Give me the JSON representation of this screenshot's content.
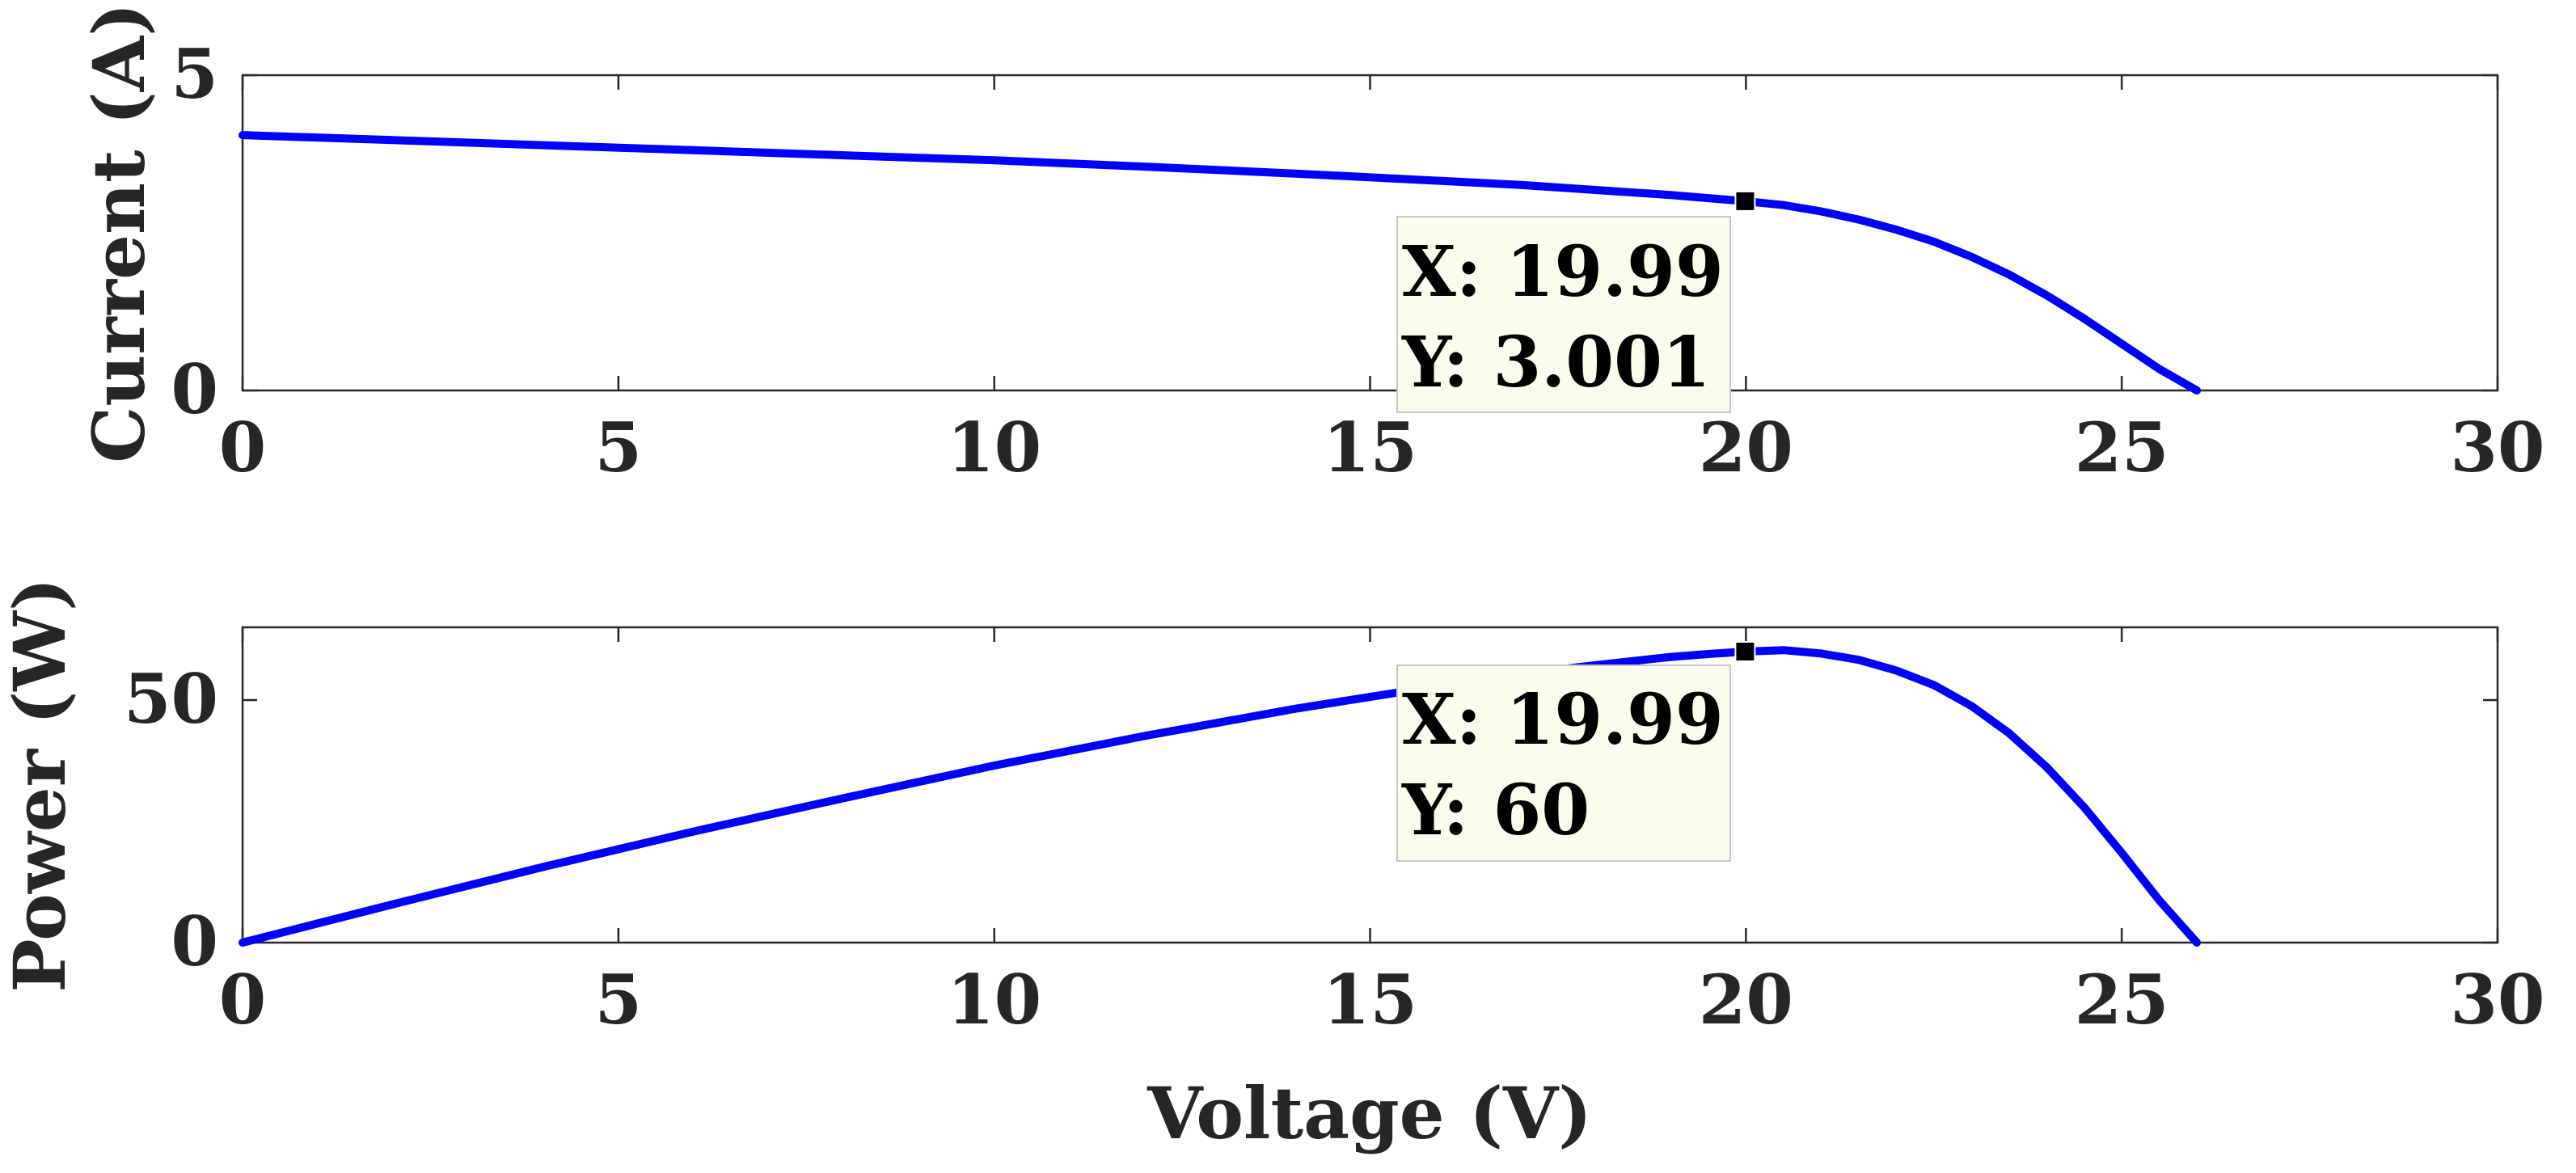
{
  "chart_data": [
    {
      "type": "line",
      "title": "",
      "xlabel": "",
      "ylabel": "Current (A)",
      "xlim": [
        0,
        30
      ],
      "ylim": [
        0,
        5
      ],
      "xticks": [
        "0",
        "5",
        "10",
        "15",
        "20",
        "25",
        "30"
      ],
      "yticks": [
        "0",
        "5"
      ],
      "grid": false,
      "series": [
        {
          "color": "#0000ff",
          "x": [
            0,
            2,
            4,
            6,
            8,
            10,
            12,
            14,
            16,
            17,
            18,
            19,
            19.5,
            19.99,
            20.5,
            21,
            21.5,
            22,
            22.5,
            23,
            23.5,
            24,
            24.5,
            25,
            25.5,
            26
          ],
          "y": [
            4.05,
            3.97,
            3.89,
            3.81,
            3.73,
            3.65,
            3.55,
            3.44,
            3.32,
            3.26,
            3.18,
            3.1,
            3.05,
            3.001,
            2.94,
            2.84,
            2.71,
            2.55,
            2.36,
            2.12,
            1.84,
            1.51,
            1.14,
            0.74,
            0.34,
            0
          ]
        }
      ],
      "datatip": {
        "x_text": "X: 19.99",
        "y_text": "Y: 3.001",
        "x": 19.99,
        "y": 3.001
      }
    },
    {
      "type": "line",
      "title": "",
      "xlabel": "Voltage (V)",
      "ylabel": "Power (W)",
      "xlim": [
        0,
        30
      ],
      "ylim": [
        0,
        65
      ],
      "xticks": [
        "0",
        "5",
        "10",
        "15",
        "20",
        "25",
        "30"
      ],
      "yticks": [
        "0",
        "50"
      ],
      "grid": false,
      "series": [
        {
          "color": "#0000ff",
          "x": [
            0,
            2,
            4,
            6,
            8,
            10,
            12,
            14,
            16,
            17,
            18,
            19,
            19.5,
            19.99,
            20.5,
            21,
            21.5,
            22,
            22.5,
            23,
            23.5,
            24,
            24.5,
            25,
            25.5,
            26
          ],
          "y": [
            0,
            7.9,
            15.6,
            22.9,
            29.8,
            36.5,
            42.6,
            48.2,
            53.1,
            55.4,
            57.2,
            58.9,
            59.5,
            60,
            60.3,
            59.6,
            58.3,
            56.1,
            53.1,
            48.8,
            43.2,
            36.2,
            27.9,
            18.5,
            8.7,
            0
          ]
        }
      ],
      "datatip": {
        "x_text": "X: 19.99",
        "y_text": "Y: 60",
        "x": 19.99,
        "y": 60
      }
    }
  ]
}
